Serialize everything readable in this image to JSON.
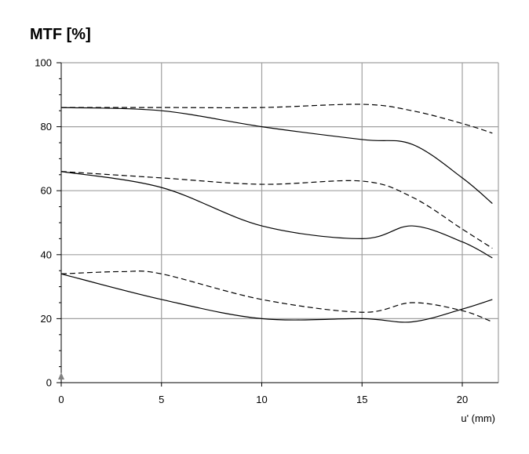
{
  "chart_data": {
    "type": "line",
    "title": "MTF [%]",
    "xlabel": "u' (mm)",
    "ylabel": "",
    "xlim": [
      0,
      21.8
    ],
    "ylim": [
      0,
      100
    ],
    "grid": true,
    "x_ticks": [
      0,
      5,
      10,
      15,
      20
    ],
    "y_ticks": [
      0,
      20,
      40,
      60,
      80,
      100
    ],
    "colors": {
      "line": "#000000",
      "grid": "#a0a0a0",
      "axis": "#000000",
      "marker": "#808080"
    },
    "series": [
      {
        "style": "dashed",
        "points": [
          [
            0,
            86
          ],
          [
            5,
            86
          ],
          [
            10,
            86
          ],
          [
            15,
            87
          ],
          [
            17.5,
            85
          ],
          [
            20,
            81
          ],
          [
            21.5,
            78
          ]
        ]
      },
      {
        "style": "solid",
        "points": [
          [
            0,
            86
          ],
          [
            5,
            85
          ],
          [
            10,
            80
          ],
          [
            15,
            76
          ],
          [
            17.5,
            74.5
          ],
          [
            20,
            64
          ],
          [
            21.5,
            56
          ]
        ]
      },
      {
        "style": "dashed",
        "points": [
          [
            0,
            66
          ],
          [
            5,
            64
          ],
          [
            10,
            62
          ],
          [
            15,
            63
          ],
          [
            17.5,
            58
          ],
          [
            20,
            48
          ],
          [
            21.5,
            42
          ]
        ]
      },
      {
        "style": "solid",
        "points": [
          [
            0,
            66
          ],
          [
            5,
            61
          ],
          [
            10,
            49
          ],
          [
            15,
            45
          ],
          [
            17.5,
            49
          ],
          [
            20,
            44
          ],
          [
            21.5,
            39
          ]
        ]
      },
      {
        "style": "dashed",
        "points": [
          [
            0,
            34
          ],
          [
            3,
            34.7
          ],
          [
            5,
            34
          ],
          [
            10,
            26
          ],
          [
            15,
            22
          ],
          [
            17.5,
            25
          ],
          [
            20,
            22.5
          ],
          [
            21.5,
            19
          ]
        ]
      },
      {
        "style": "solid",
        "points": [
          [
            0,
            34
          ],
          [
            5,
            26
          ],
          [
            10,
            20
          ],
          [
            15,
            20
          ],
          [
            17.5,
            19
          ],
          [
            20,
            23
          ],
          [
            21.5,
            26
          ]
        ]
      }
    ]
  }
}
